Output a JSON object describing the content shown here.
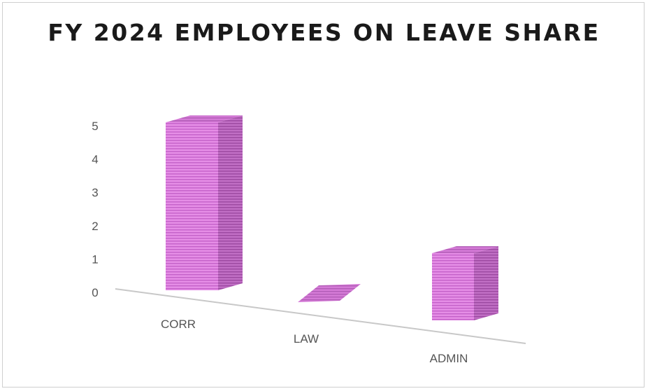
{
  "chart_data": {
    "type": "bar",
    "title": "FY 2024 EMPLOYEES ON LEAVE SHARE",
    "categories": [
      "CORR",
      "LAW",
      "ADMIN"
    ],
    "values": [
      5,
      0,
      2
    ],
    "ylim": [
      0,
      5
    ],
    "yticks": [
      0,
      1,
      2,
      3,
      4,
      5
    ],
    "xlabel": "",
    "ylabel": "",
    "grid": false,
    "legend": "none",
    "bar_color": "#e58de6",
    "bar_pattern": "horizontal-stripes"
  }
}
